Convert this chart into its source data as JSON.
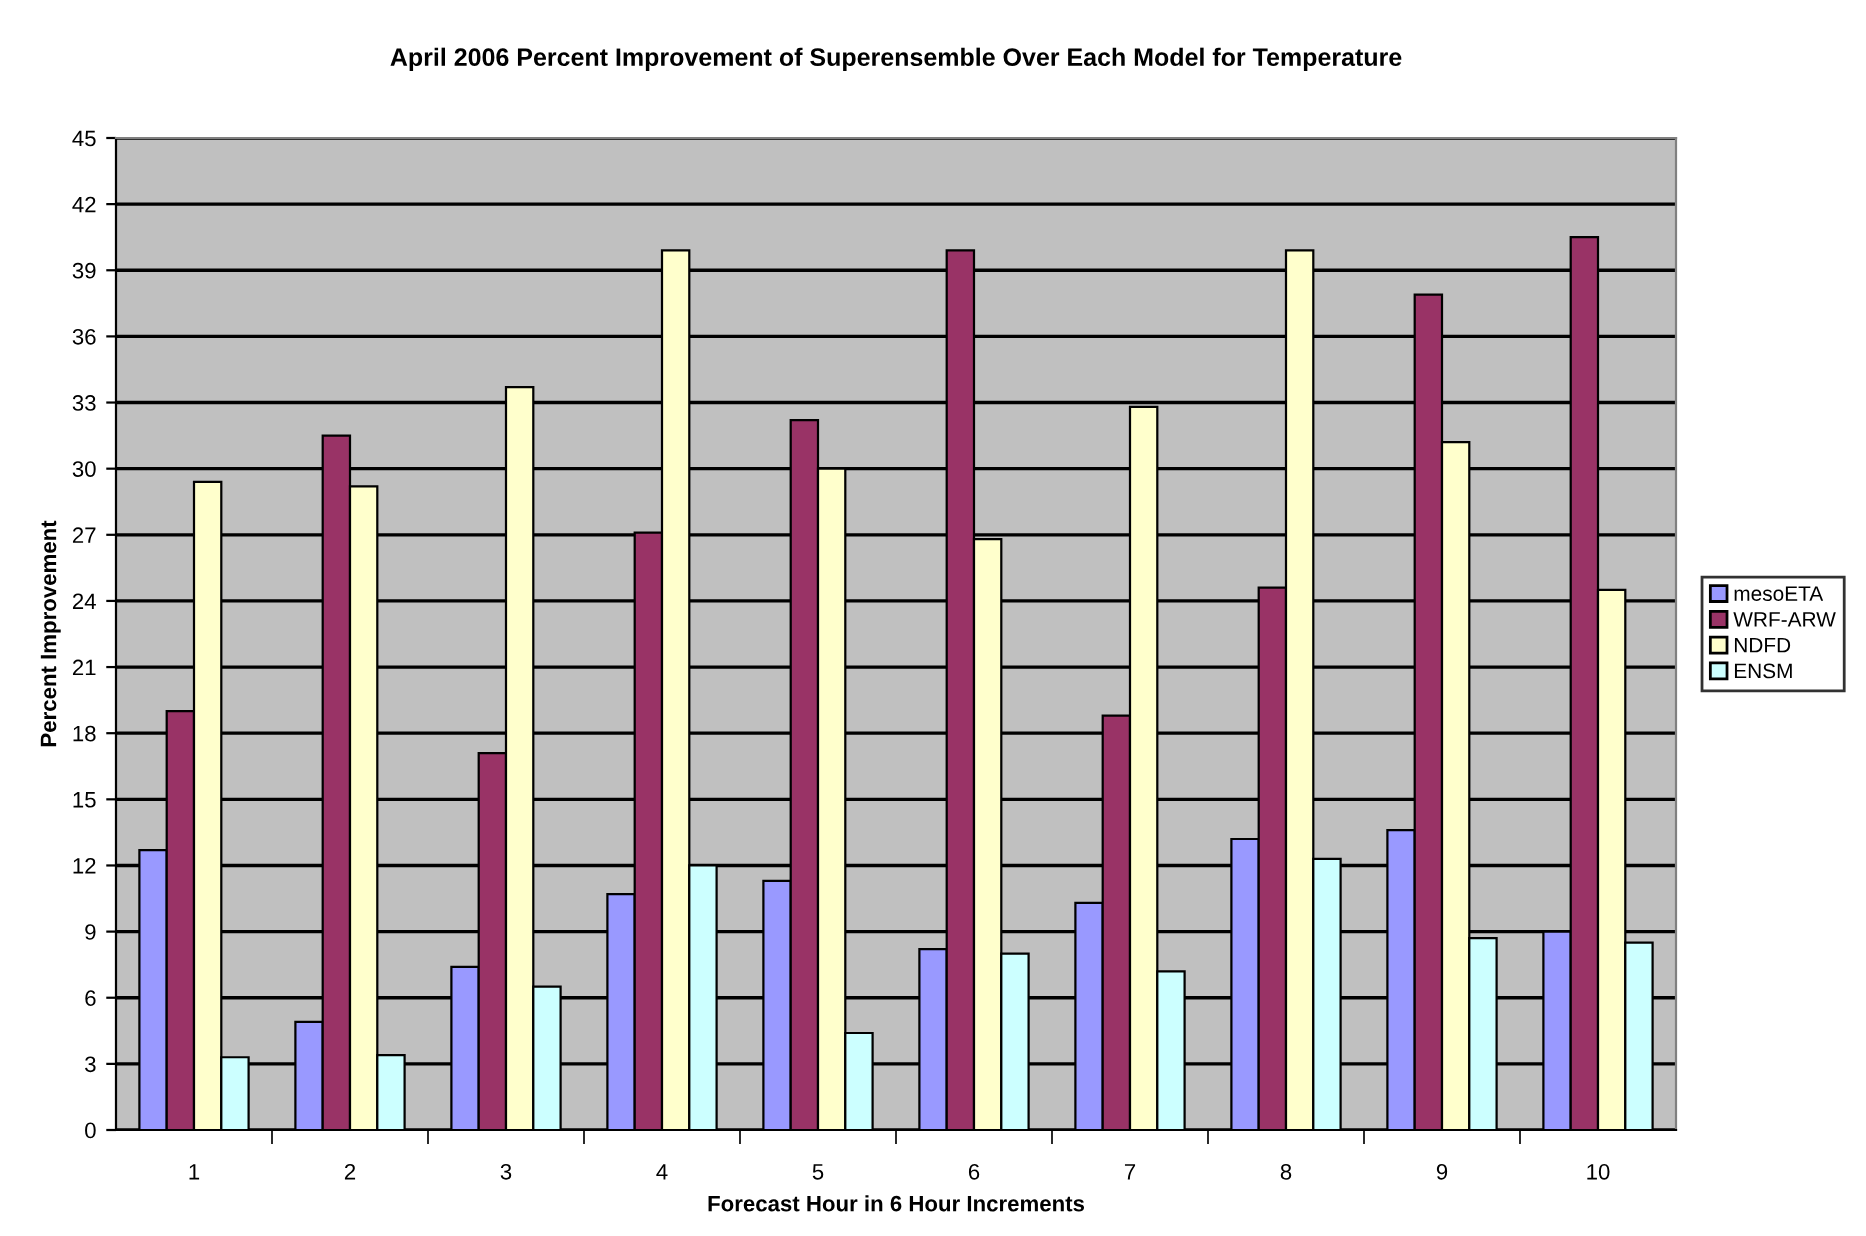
{
  "chart_data": {
    "type": "bar",
    "title": "April 2006 Percent Improvement of Superensemble Over Each Model for Temperature",
    "xlabel": "Forecast Hour in 6 Hour Increments",
    "ylabel": "Percent Improvement",
    "categories": [
      "1",
      "2",
      "3",
      "4",
      "5",
      "6",
      "7",
      "8",
      "9",
      "10"
    ],
    "series": [
      {
        "name": "mesoETA",
        "color": "#9999ff",
        "values": [
          12.7,
          4.9,
          7.4,
          10.7,
          11.3,
          8.2,
          10.3,
          13.2,
          13.6,
          9.0
        ]
      },
      {
        "name": "WRF-ARW",
        "color": "#993366",
        "values": [
          19.0,
          31.5,
          17.1,
          27.1,
          32.2,
          39.9,
          18.8,
          24.6,
          37.9,
          40.5
        ]
      },
      {
        "name": "NDFD",
        "color": "#ffffcc",
        "values": [
          29.4,
          29.2,
          33.7,
          39.9,
          30.0,
          26.8,
          32.8,
          39.9,
          31.2,
          24.5
        ]
      },
      {
        "name": "ENSM",
        "color": "#ccffff",
        "values": [
          3.3,
          3.4,
          6.5,
          12.0,
          4.4,
          8.0,
          7.2,
          12.3,
          8.7,
          8.5
        ]
      }
    ],
    "ylim": [
      0,
      45
    ],
    "yticks": [
      0,
      3,
      6,
      9,
      12,
      15,
      18,
      21,
      24,
      27,
      30,
      33,
      36,
      39,
      42,
      45
    ],
    "grid": "y",
    "legend": "right"
  }
}
